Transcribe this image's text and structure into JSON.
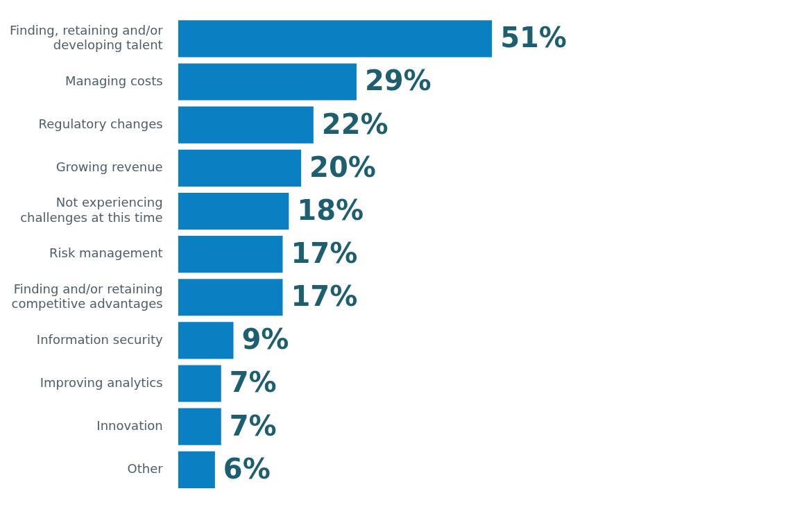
{
  "chart_data": {
    "type": "bar",
    "orientation": "horizontal",
    "categories": [
      "Finding, retaining and/or\ndeveloping talent",
      "Managing costs",
      "Regulatory changes",
      "Growing revenue",
      "Not experiencing\nchallenges at this time",
      "Risk management",
      "Finding and/or retaining\ncompetitive advantages",
      "Information security",
      "Improving analytics",
      "Innovation",
      "Other"
    ],
    "values": [
      51,
      29,
      22,
      20,
      18,
      17,
      17,
      9,
      7,
      7,
      6
    ],
    "value_labels": [
      "51%",
      "29%",
      "22%",
      "20%",
      "18%",
      "17%",
      "17%",
      "9%",
      "7%",
      "7%",
      "6%"
    ],
    "color": "#0a7fc2",
    "tick_labels": "y"
  }
}
